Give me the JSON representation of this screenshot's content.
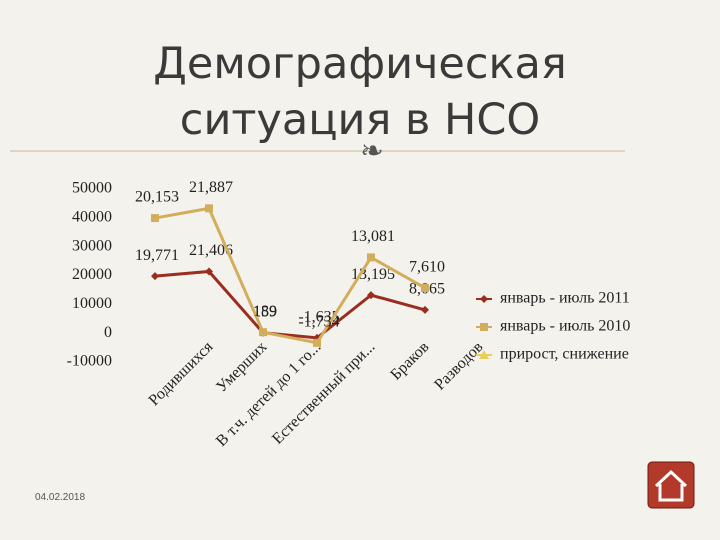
{
  "slide": {
    "title_lines": [
      "Демографическая",
      "ситуация в НСО"
    ],
    "date": "04.02.2018"
  },
  "chart_data": {
    "type": "line",
    "stacked": true,
    "categories": [
      "Родившихся",
      "Умерших",
      "В т.ч. детей до 1 го...",
      "Естественный при...",
      "Браков",
      "Разводов"
    ],
    "series": [
      {
        "name": "январь - июль 2011",
        "color": "#9b2d1f",
        "marker": "diamond",
        "values": [
          19771,
          21406,
          159,
          -1635,
          13195,
          8065
        ],
        "value_labels": [
          "19,771",
          "21,406",
          "159",
          "-1,635",
          "13,195",
          "8,065"
        ]
      },
      {
        "name": "январь - июль 2010",
        "color": "#d2ae5c",
        "marker": "square",
        "values": [
          20153,
          21887,
          189,
          -1734,
          13081,
          7610
        ],
        "value_labels": [
          "20,153",
          "21,887",
          "189",
          "-1,734",
          "13,081",
          "7,610"
        ]
      },
      {
        "name": "прирост, снижение",
        "color": "#e6cf5a",
        "marker": "triangle",
        "values": [
          null,
          null,
          null,
          null,
          null,
          null
        ]
      }
    ],
    "ylim": [
      -10000,
      50000
    ],
    "yticks": [
      -10000,
      0,
      10000,
      20000,
      30000,
      40000,
      50000
    ]
  }
}
